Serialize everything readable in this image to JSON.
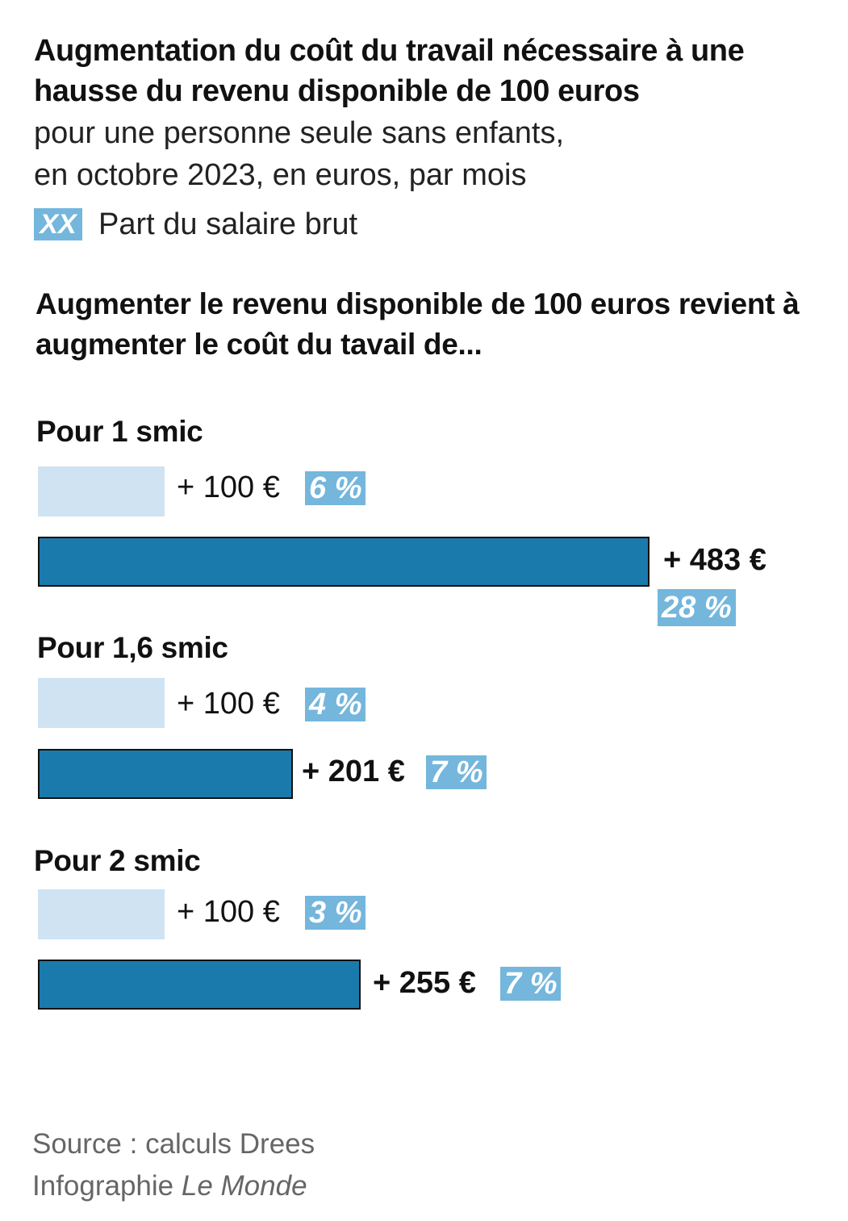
{
  "title": "Augmentation du coût du travail nécessaire à une hausse du revenu disponible de 100 euros",
  "subtitle_line1": "pour une personne seule sans enfants,",
  "subtitle_line2": "en octobre 2023, en euros, par mois",
  "legend": {
    "swatch_text": "XX",
    "label": "Part du salaire brut"
  },
  "section_title": "Augmenter le revenu disponible de 100 euros revient à augmenter le coût du tavail de...",
  "footer": {
    "source": "Source : calculs Drees",
    "credit_prefix": "Infographie",
    "credit_brand": "Le Monde"
  },
  "colors": {
    "light_bar": "#cfe3f3",
    "dark_bar": "#1a7aac",
    "pct_badge": "#74b6dc"
  },
  "chart_data": {
    "type": "bar",
    "orientation": "horizontal",
    "groups": [
      {
        "label": "Pour 1 smic",
        "revenu_disponible": {
          "value": 100,
          "label": "+ 100 €",
          "pct": "6 %"
        },
        "cout_du_travail": {
          "value": 483,
          "label": "+ 483 €",
          "pct": "28 %"
        }
      },
      {
        "label": "Pour 1,6 smic",
        "revenu_disponible": {
          "value": 100,
          "label": "+ 100 €",
          "pct": "4 %"
        },
        "cout_du_travail": {
          "value": 201,
          "label": "+ 201 €",
          "pct": "7 %"
        }
      },
      {
        "label": "Pour 2 smic",
        "revenu_disponible": {
          "value": 100,
          "label": "+ 100 €",
          "pct": "3 %"
        },
        "cout_du_travail": {
          "value": 255,
          "label": "+ 255 €",
          "pct": "7 %"
        }
      }
    ]
  }
}
